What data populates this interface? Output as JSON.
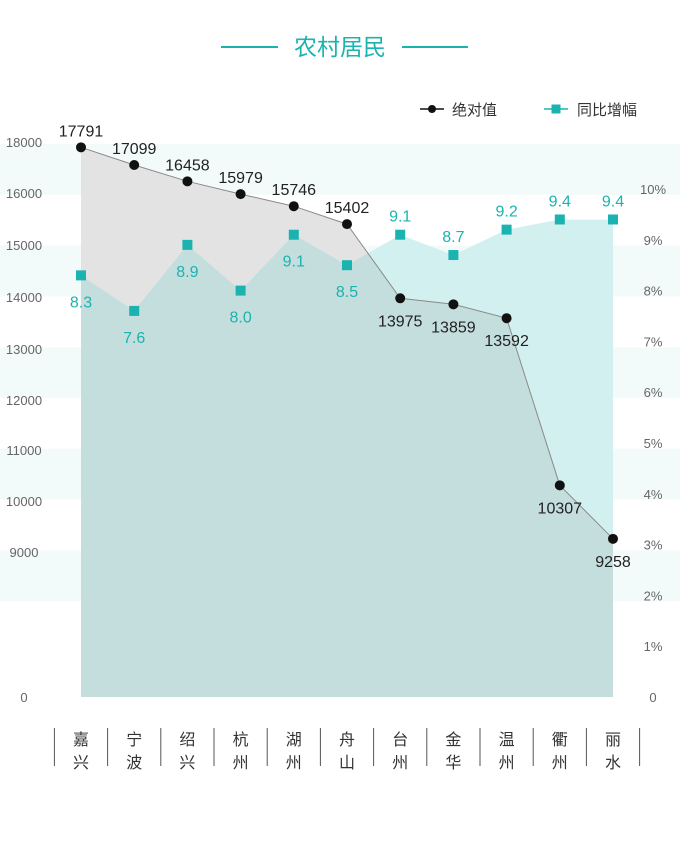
{
  "title": "农村居民",
  "legend": {
    "absolute_label": "绝对值",
    "growth_label": "同比增幅",
    "position": "top-right"
  },
  "colors": {
    "absolute_line": "#111111",
    "absolute_area": "#e3e3e3",
    "growth_marker": "#1ab3b0",
    "growth_area": "#d3f0f0",
    "overlap_area": "#c4dedd",
    "band": "#f3fafa",
    "title": "#1ab3b0"
  },
  "chart_data": {
    "type": "line",
    "title": "农村居民",
    "categories": [
      "嘉兴",
      "宁波",
      "绍兴",
      "杭州",
      "湖州",
      "舟山",
      "台州",
      "金华",
      "温州",
      "衢州",
      "丽水"
    ],
    "series": [
      {
        "name": "绝对值",
        "axis": "left",
        "values": [
          17791,
          17099,
          16458,
          15979,
          15746,
          15402,
          13975,
          13859,
          13592,
          10307,
          9258
        ],
        "labels": [
          "17791",
          "17099",
          "16458",
          "15979",
          "15746",
          "15402",
          "13975",
          "13859",
          "13592",
          "10307",
          "9258"
        ]
      },
      {
        "name": "同比增幅",
        "axis": "right",
        "values": [
          8.3,
          7.6,
          8.9,
          8.0,
          9.1,
          8.5,
          9.1,
          8.7,
          9.2,
          9.4,
          9.4
        ],
        "labels": [
          "8.3",
          "7.6",
          "8.9",
          "8.0",
          "9.1",
          "8.5",
          "9.1",
          "8.7",
          "9.2",
          "9.4",
          "9.4"
        ]
      }
    ],
    "left_axis": {
      "ticks": [
        0,
        9000,
        10000,
        11000,
        12000,
        13000,
        14000,
        15000,
        16000,
        18000
      ],
      "tick_labels": [
        "0",
        "9000",
        "10000",
        "11000",
        "12000",
        "13000",
        "14000",
        "15000",
        "16000",
        "18000"
      ]
    },
    "right_axis": {
      "ticks": [
        0,
        1,
        2,
        3,
        4,
        5,
        6,
        7,
        8,
        9,
        10
      ],
      "tick_labels": [
        "0",
        "1%",
        "2%",
        "3%",
        "4%",
        "5%",
        "6%",
        "7%",
        "8%",
        "9%",
        "10%"
      ],
      "ylim": [
        0,
        10
      ]
    },
    "grid": false
  }
}
